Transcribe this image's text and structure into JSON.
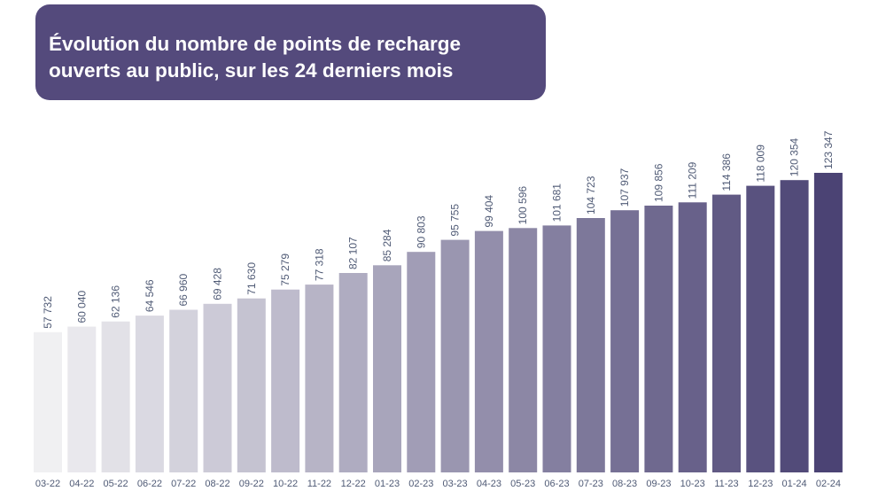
{
  "header": {
    "title_line1": "Évolution du nombre de points de recharge",
    "title_line2": "ouverts au public, sur les 24 derniers mois",
    "background_color": "#544a7c"
  },
  "chart_data": {
    "type": "bar",
    "title": "Évolution du nombre de points de recharge ouverts au public, sur les 24 derniers mois",
    "xlabel": "",
    "ylabel": "",
    "categories": [
      "03-22",
      "04-22",
      "05-22",
      "06-22",
      "07-22",
      "08-22",
      "09-22",
      "10-22",
      "11-22",
      "12-22",
      "01-23",
      "02-23",
      "03-23",
      "04-23",
      "05-23",
      "06-23",
      "07-23",
      "08-23",
      "09-23",
      "10-23",
      "11-23",
      "12-23",
      "01-24",
      "02-24"
    ],
    "values": [
      57732,
      60040,
      62136,
      64546,
      66960,
      69428,
      71630,
      75279,
      77318,
      82107,
      85284,
      90803,
      95755,
      99404,
      100596,
      101681,
      104723,
      107937,
      109856,
      111209,
      114386,
      118009,
      120354,
      123347
    ],
    "value_labels": [
      "57 732",
      "60 040",
      "62 136",
      "64 546",
      "66 960",
      "69 428",
      "71 630",
      "75 279",
      "77 318",
      "82 107",
      "85 284",
      "90 803",
      "95 755",
      "99 404",
      "100 596",
      "101 681",
      "104 723",
      "107 937",
      "109 856",
      "111 209",
      "114 386",
      "118 009",
      "120 354",
      "123 347"
    ],
    "color_start": "#f0f0f2",
    "color_end": "#4b4374",
    "grid": false,
    "legend": "none"
  }
}
